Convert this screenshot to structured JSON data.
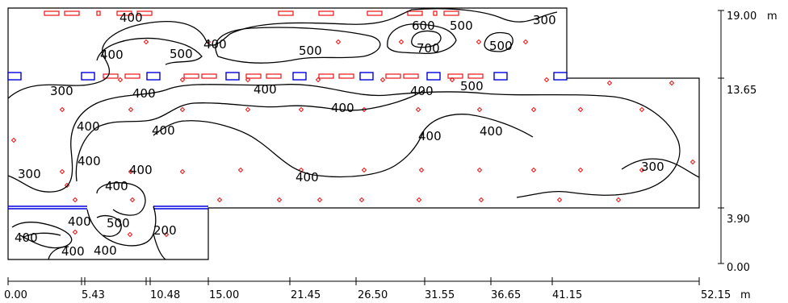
{
  "diagram": {
    "x_axis": {
      "unit": "m",
      "ticks": [
        "0.00",
        "5.43",
        "10.48",
        "15.00",
        "21.45",
        "26.50",
        "31.55",
        "36.65",
        "41.15",
        "52.15"
      ]
    },
    "y_axis": {
      "unit": "m",
      "ticks": [
        "0.00",
        "3.90",
        "13.65",
        "19.00"
      ]
    },
    "contour_labels": [
      "400",
      "400",
      "500",
      "400",
      "500",
      "600",
      "500",
      "700",
      "500",
      "300",
      "300",
      "400",
      "400",
      "400",
      "400",
      "400",
      "400",
      "500",
      "400",
      "400",
      "400",
      "300",
      "400",
      "400",
      "400",
      "300",
      "400",
      "500",
      "200",
      "400",
      "400",
      "400"
    ],
    "colors": {
      "contour": "#000000",
      "outline": "#000000",
      "window_blue": "#0000dd",
      "luminaire_red": "#ee1111",
      "measure_point": "#ee1111"
    }
  }
}
